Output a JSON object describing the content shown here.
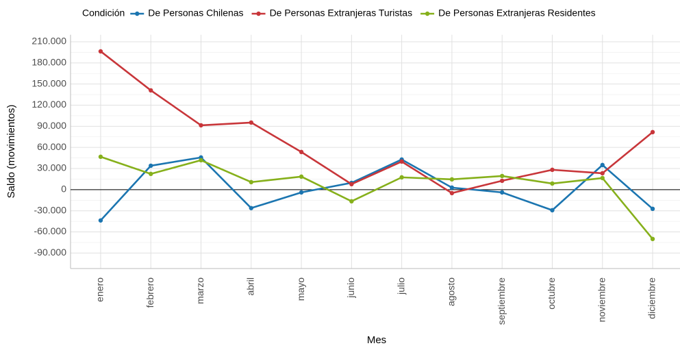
{
  "chart_data": {
    "type": "line",
    "xlabel": "Mes",
    "ylabel": "Saldo (movimientos)",
    "legend_title": "Condición",
    "legend": "top",
    "categories": [
      "enero",
      "febrero",
      "marzo",
      "abril",
      "mayo",
      "junio",
      "julio",
      "agosto",
      "septiembre",
      "octubre",
      "noviembre",
      "diciembre"
    ],
    "series": [
      {
        "name": "De Personas Chilenas",
        "color": "#1b75b0",
        "values": [
          -43700,
          34000,
          45700,
          -26200,
          -3900,
          9700,
          42800,
          2900,
          -3900,
          -29200,
          35000,
          -27200
        ]
      },
      {
        "name": "De Personas Extranjeras Turistas",
        "color": "#c8363a",
        "values": [
          196400,
          141000,
          91400,
          95300,
          53500,
          7800,
          39900,
          -4900,
          12600,
          28200,
          23300,
          81700
        ]
      },
      {
        "name": "De Personas Extranjeras Residentes",
        "color": "#86b01b",
        "values": [
          46700,
          22400,
          41800,
          10700,
          18500,
          -16500,
          17500,
          14600,
          19400,
          8700,
          16500,
          -70000
        ]
      }
    ],
    "ylim": [
      -112000,
      220000
    ],
    "yticks": [
      {
        "value": -90000,
        "label": "-90.000"
      },
      {
        "value": -60000,
        "label": "-60.000"
      },
      {
        "value": -30000,
        "label": "-30.000"
      },
      0,
      {
        "value": 30000,
        "label": "30.000"
      },
      {
        "value": 60000,
        "label": "60.000"
      },
      {
        "value": 90000,
        "label": "90.000"
      },
      {
        "value": 120000,
        "label": "120.000"
      },
      {
        "value": 150000,
        "label": "150.000"
      },
      {
        "value": 180000,
        "label": "180.000"
      },
      {
        "value": 210000,
        "label": "210.000"
      }
    ],
    "hline": 0,
    "grid": true
  }
}
